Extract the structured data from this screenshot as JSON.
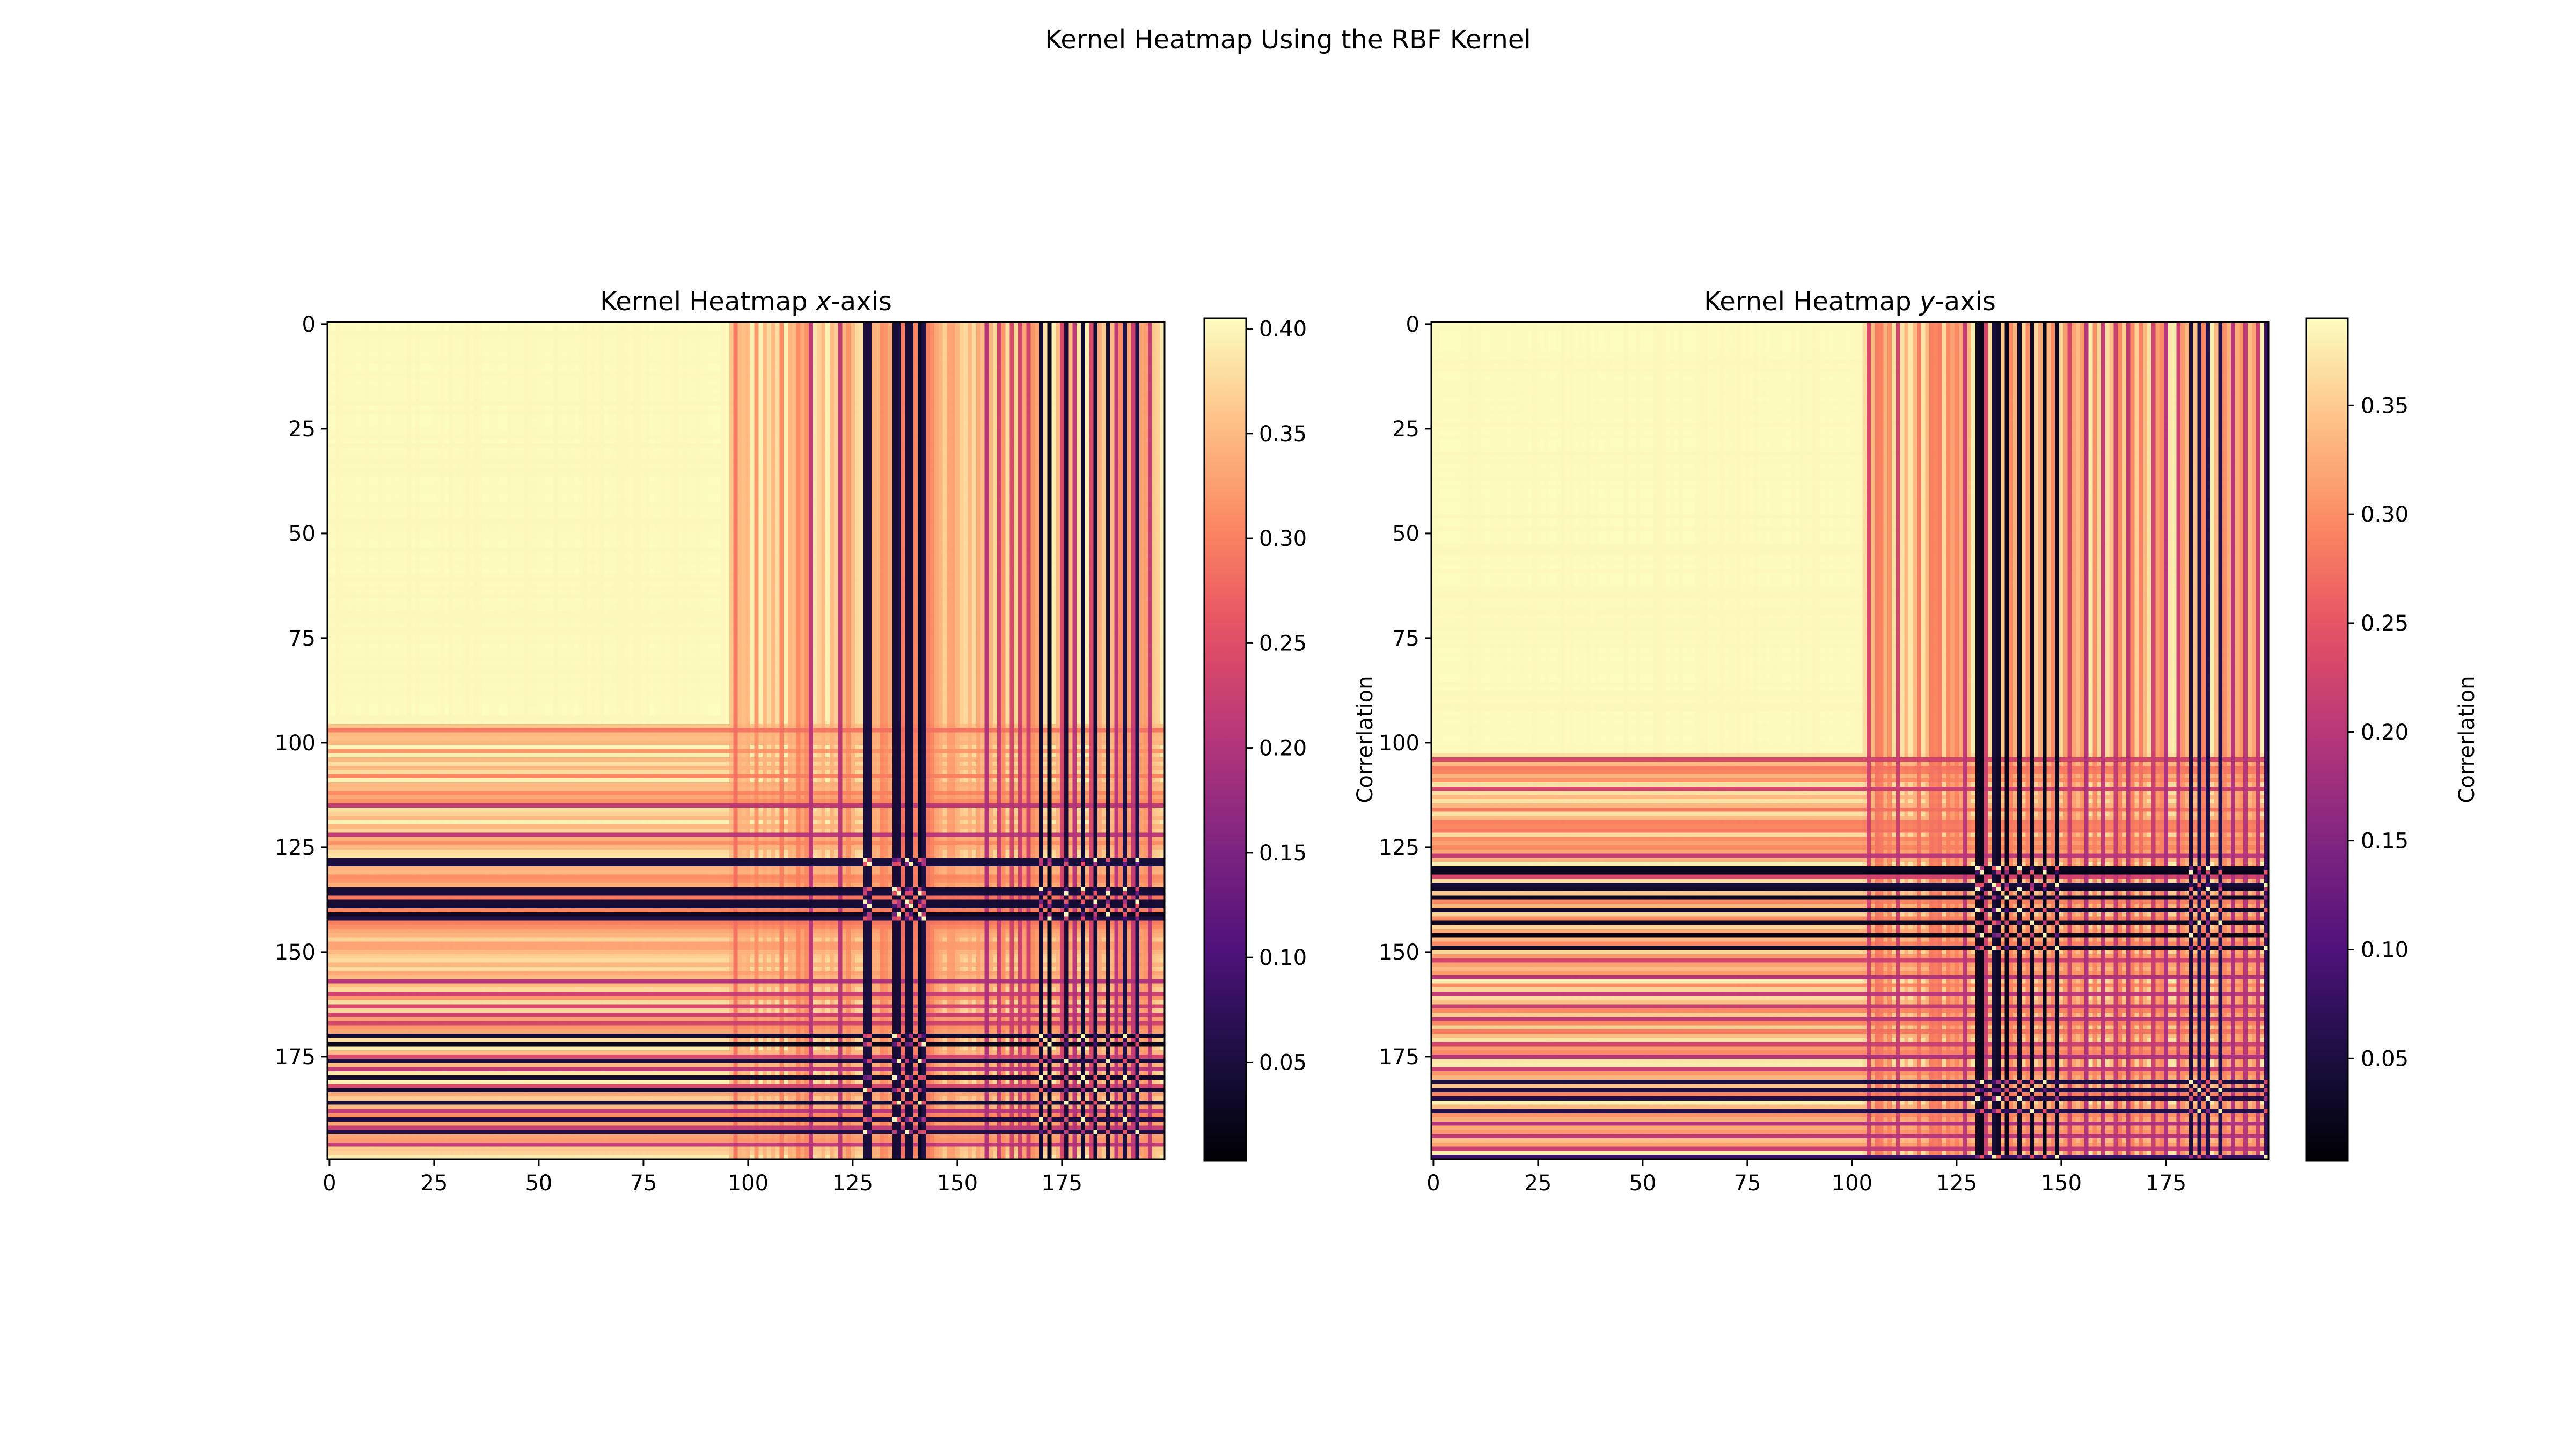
{
  "figure": {
    "suptitle": "Kernel Heatmap Using the RBF Kernel"
  },
  "chart_data": [
    {
      "type": "heatmap",
      "title_prefix": "Kernel Heatmap ",
      "title_var": "x",
      "title_suffix": "-axis",
      "n": 200,
      "colormap": "magma",
      "grid": false,
      "xticks": [
        0,
        25,
        50,
        75,
        100,
        125,
        150,
        175
      ],
      "yticks": [
        0,
        25,
        50,
        75,
        100,
        125,
        150,
        175
      ],
      "colorbar": {
        "label": "Correrlation",
        "range": [
          0.003,
          0.405
        ],
        "ticks": [
          0.05,
          0.1,
          0.15,
          0.2,
          0.25,
          0.3,
          0.35,
          0.4
        ],
        "tick_labels": [
          "0.05",
          "0.10",
          "0.15",
          "0.20",
          "0.25",
          "0.30",
          "0.35",
          "0.40"
        ]
      },
      "dark_bands": [
        128,
        129,
        135,
        136,
        138,
        139,
        141,
        142,
        170,
        172,
        176,
        180,
        183,
        186,
        190,
        193
      ],
      "mid_bands": [
        115,
        122,
        157,
        160,
        163,
        165,
        167,
        175,
        178,
        182,
        188,
        192,
        196
      ],
      "light_bands": [
        98,
        100,
        102,
        104,
        106,
        108,
        110,
        112,
        118,
        120,
        125,
        150,
        153
      ]
    },
    {
      "type": "heatmap",
      "title_prefix": "Kernel Heatmap ",
      "title_var": "y",
      "title_suffix": "-axis",
      "n": 200,
      "colormap": "magma",
      "grid": false,
      "xticks": [
        0,
        25,
        50,
        75,
        100,
        125,
        150,
        175
      ],
      "yticks": [
        0,
        25,
        50,
        75,
        100,
        125,
        150,
        175
      ],
      "colorbar": {
        "label": "Correrlation",
        "range": [
          0.003,
          0.39
        ],
        "ticks": [
          0.05,
          0.1,
          0.15,
          0.2,
          0.25,
          0.3,
          0.35
        ],
        "tick_labels": [
          "0.05",
          "0.10",
          "0.15",
          "0.20",
          "0.25",
          "0.30",
          "0.35"
        ]
      },
      "dark_bands": [
        130,
        131,
        134,
        135,
        137,
        140,
        143,
        146,
        149,
        181,
        183,
        185,
        188,
        199
      ],
      "mid_bands": [
        104,
        111,
        127,
        132,
        152,
        156,
        160,
        163,
        166,
        172,
        175,
        178,
        191,
        194,
        197
      ],
      "light_bands": [
        105,
        109,
        113,
        115,
        118,
        120,
        123,
        125,
        154,
        158,
        170,
        196
      ]
    }
  ]
}
